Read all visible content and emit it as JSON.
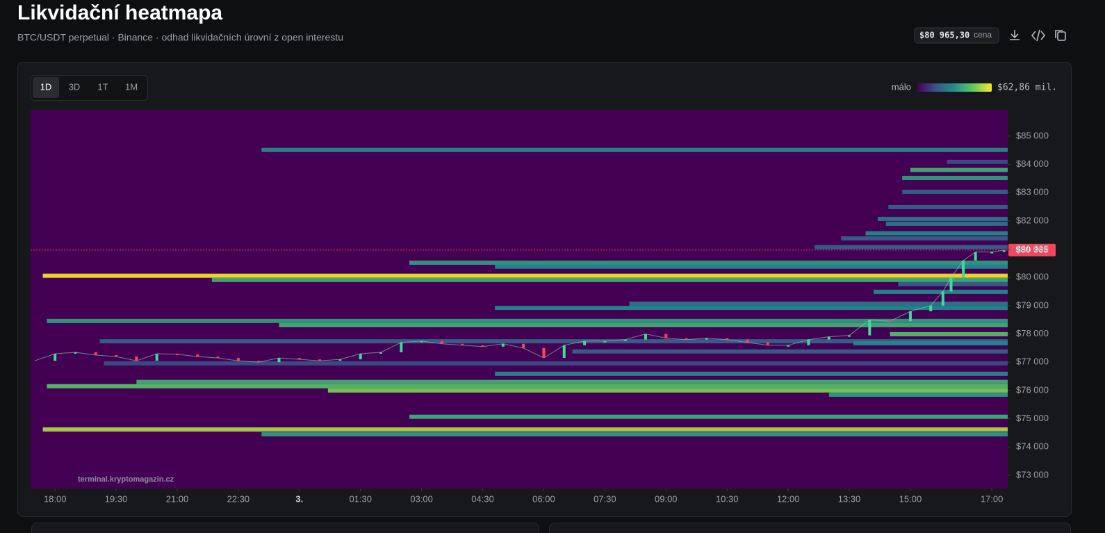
{
  "header": {
    "title": "Likvidační heatmapa",
    "subtitle": "BTC/USDT perpetual · Binance · odhad likvidačních úrovní z open interestu",
    "price": "$80 965,30",
    "price_caption": "cena"
  },
  "tabs": [
    "1D",
    "3D",
    "1T",
    "1M"
  ],
  "active_tab": 0,
  "chart_data": {
    "type": "heatmap",
    "watermark": "terminal.kryptomagazin.cz",
    "legend": {
      "low_label": "málo",
      "high_label": "$62,86 mil.",
      "max": 62.86
    },
    "xlim": [
      17.4,
      41.39
    ],
    "xticks": [
      {
        "value": 18,
        "label": "18:00"
      },
      {
        "value": 19.5,
        "label": "19:30"
      },
      {
        "value": 21,
        "label": "21:00"
      },
      {
        "value": 22.5,
        "label": "22:30"
      },
      {
        "value": 24,
        "label": "3."
      },
      {
        "value": 25.5,
        "label": "01:30"
      },
      {
        "value": 27,
        "label": "03:00"
      },
      {
        "value": 28.5,
        "label": "04:30"
      },
      {
        "value": 30,
        "label": "06:00"
      },
      {
        "value": 31.5,
        "label": "07:30"
      },
      {
        "value": 33,
        "label": "09:00"
      },
      {
        "value": 34.5,
        "label": "10:30"
      },
      {
        "value": 36,
        "label": "12:00"
      },
      {
        "value": 37.5,
        "label": "13:30"
      },
      {
        "value": 39,
        "label": "15:00"
      },
      {
        "value": 41,
        "label": "17:00"
      }
    ],
    "ylim": [
      72530,
      85930
    ],
    "yticks": [
      {
        "value": 73000,
        "label": "$73 000"
      },
      {
        "value": 74000,
        "label": "$74 000"
      },
      {
        "value": 75000,
        "label": "$75 000"
      },
      {
        "value": 76000,
        "label": "$76 000"
      },
      {
        "value": 77000,
        "label": "$77 000"
      },
      {
        "value": 78000,
        "label": "$78 000"
      },
      {
        "value": 79000,
        "label": "$79 000"
      },
      {
        "value": 80000,
        "label": "$80 000"
      },
      {
        "value": 81000,
        "label": "$81 000"
      },
      {
        "value": 82000,
        "label": "$82 000"
      },
      {
        "value": 83000,
        "label": "$83 000"
      },
      {
        "value": 84000,
        "label": "$84 000"
      },
      {
        "value": 85000,
        "label": "$85 000"
      }
    ],
    "current_price": {
      "value": 80965,
      "label": "$80 965"
    },
    "bands": [
      {
        "price": 84510,
        "start": 23.07,
        "intensity": 30
      },
      {
        "price": 84090,
        "start": 39.9,
        "intensity": 15
      },
      {
        "price": 83800,
        "start": 39.0,
        "intensity": 40
      },
      {
        "price": 83520,
        "start": 38.8,
        "intensity": 35
      },
      {
        "price": 83030,
        "start": 38.8,
        "intensity": 20
      },
      {
        "price": 82490,
        "start": 38.46,
        "intensity": 20
      },
      {
        "price": 82070,
        "start": 38.2,
        "intensity": 25
      },
      {
        "price": 81900,
        "start": 38.4,
        "intensity": 25
      },
      {
        "price": 81560,
        "start": 37.9,
        "intensity": 30
      },
      {
        "price": 81380,
        "start": 37.3,
        "intensity": 20
      },
      {
        "price": 81070,
        "start": 36.65,
        "intensity": 20
      },
      {
        "price": 80520,
        "start": 26.7,
        "intensity": 35
      },
      {
        "price": 80380,
        "start": 28.8,
        "intensity": 30
      },
      {
        "price": 80060,
        "start": 17.7,
        "intensity": 62
      },
      {
        "price": 79910,
        "start": 21.85,
        "intensity": 40
      },
      {
        "price": 79760,
        "start": 38.7,
        "intensity": 20
      },
      {
        "price": 79490,
        "start": 38.1,
        "intensity": 30
      },
      {
        "price": 79070,
        "start": 32.1,
        "intensity": 25
      },
      {
        "price": 78920,
        "start": 28.8,
        "intensity": 30
      },
      {
        "price": 78460,
        "start": 17.8,
        "intensity": 35
      },
      {
        "price": 78310,
        "start": 23.5,
        "intensity": 40
      },
      {
        "price": 77990,
        "start": 38.5,
        "intensity": 45
      },
      {
        "price": 77740,
        "start": 19.1,
        "intensity": 20
      },
      {
        "price": 77670,
        "start": 37.6,
        "intensity": 30
      },
      {
        "price": 77380,
        "start": 30.7,
        "intensity": 20
      },
      {
        "price": 76960,
        "start": 19.2,
        "intensity": 15
      },
      {
        "price": 76590,
        "start": 28.8,
        "intensity": 30
      },
      {
        "price": 76300,
        "start": 20.0,
        "intensity": 40
      },
      {
        "price": 76150,
        "start": 17.8,
        "intensity": 45
      },
      {
        "price": 76000,
        "start": 24.7,
        "intensity": 50
      },
      {
        "price": 75850,
        "start": 37.0,
        "intensity": 35
      },
      {
        "price": 75070,
        "start": 26.7,
        "intensity": 40
      },
      {
        "price": 74620,
        "start": 17.7,
        "intensity": 55
      },
      {
        "price": 74450,
        "start": 23.07,
        "intensity": 35
      }
    ],
    "price_series": {
      "up_color": "#3ddc97",
      "down_color": "#f6465d",
      "x": [
        17.5,
        18,
        18.5,
        19,
        19.5,
        20,
        20.5,
        21,
        21.5,
        22,
        22.5,
        23,
        23.5,
        24,
        24.5,
        25,
        25.5,
        26,
        26.5,
        27,
        27.5,
        28,
        28.5,
        29,
        29.5,
        30,
        30.5,
        31,
        31.5,
        32,
        32.5,
        33,
        33.5,
        34,
        34.5,
        35,
        35.5,
        36,
        36.5,
        37,
        37.5,
        38,
        38.5,
        39,
        39.5,
        39.8,
        40,
        40.3,
        40.6,
        41,
        41.3
      ],
      "values": [
        77050,
        77300,
        77350,
        77250,
        77200,
        77050,
        77300,
        77280,
        77200,
        77150,
        77050,
        77000,
        77150,
        77100,
        77050,
        77100,
        77300,
        77350,
        77700,
        77750,
        77650,
        77600,
        77550,
        77650,
        77500,
        77150,
        77600,
        77750,
        77750,
        77800,
        78000,
        77850,
        77800,
        77850,
        77800,
        77700,
        77600,
        77600,
        77800,
        77900,
        77950,
        78500,
        78450,
        78800,
        79000,
        79500,
        80000,
        80600,
        80900,
        80900,
        80965
      ]
    }
  }
}
